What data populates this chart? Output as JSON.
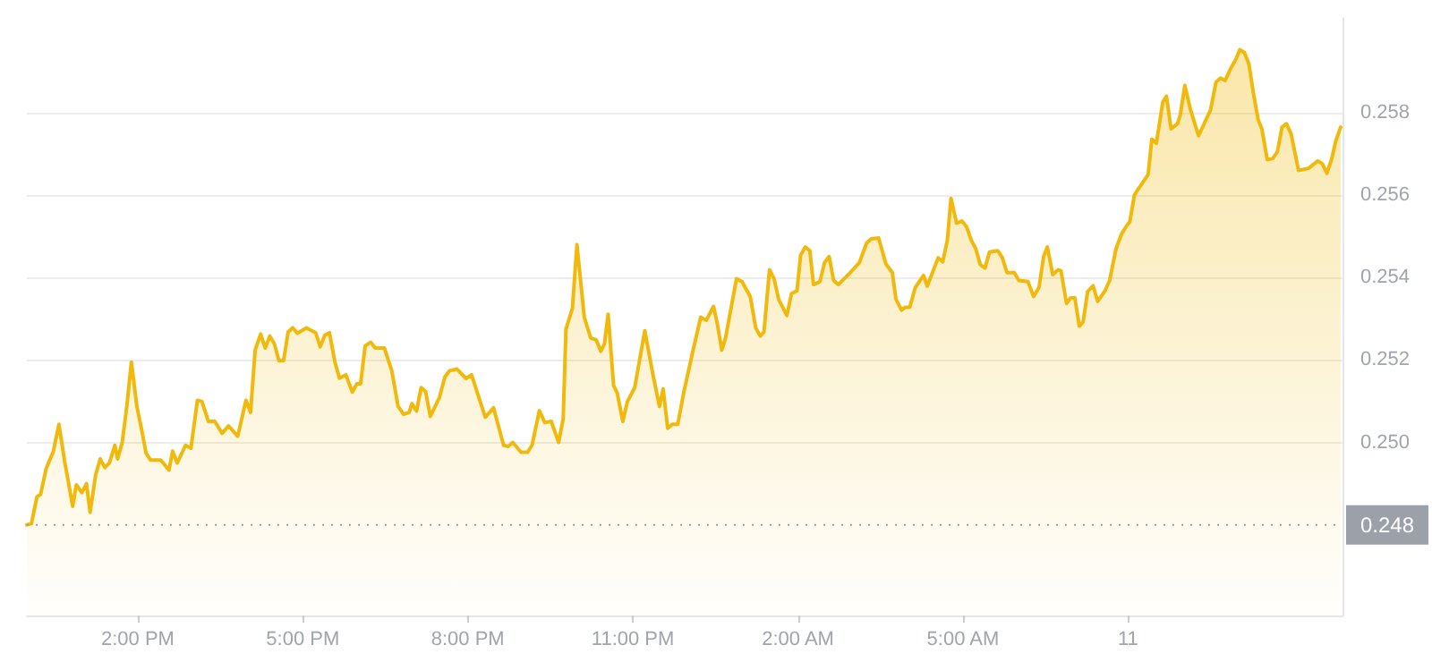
{
  "chart_data": {
    "type": "area",
    "color": "#f0b90b",
    "x": [
      "--01-10T11:59",
      "--01-10T12:04",
      "--01-10T12:10",
      "--01-10T12:14",
      "--01-10T12:20",
      "--01-10T12:28",
      "--01-10T12:34",
      "--01-10T12:40",
      "--01-10T12:49",
      "--01-10T12:53",
      "--01-10T12:59",
      "--01-10T13:04",
      "--01-10T13:08",
      "--01-10T13:14",
      "--01-10T13:19",
      "--01-10T13:24",
      "--01-10T13:29",
      "--01-10T13:35",
      "--01-10T13:38",
      "--01-10T13:43",
      "--01-10T13:48",
      "--01-10T13:53",
      "--01-10T13:59",
      "--01-10T14:05",
      "--01-10T14:09",
      "--01-10T14:14",
      "--01-10T14:25",
      "--01-10T14:34",
      "--01-10T14:38",
      "--01-10T14:43",
      "--01-10T14:52",
      "--01-10T14:58",
      "--01-10T15:05",
      "--01-10T15:10",
      "--01-10T15:17",
      "--01-10T15:24",
      "--01-10T15:32",
      "--01-10T15:39",
      "--01-10T15:49",
      "--01-10T15:58",
      "--01-10T16:03",
      "--01-10T16:08",
      "--01-10T16:14",
      "--01-10T16:19",
      "--01-10T16:24",
      "--01-10T16:29",
      "--01-10T16:34",
      "--01-10T16:39",
      "--01-10T16:44",
      "--01-10T16:49",
      "--01-10T16:54",
      "--01-10T17:04",
      "--01-10T17:14",
      "--01-10T17:19",
      "--01-10T17:24",
      "--01-10T17:29",
      "--01-10T17:35",
      "--01-10T17:40",
      "--01-10T17:47",
      "--01-10T17:54",
      "--01-10T17:59",
      "--01-10T18:03",
      "--01-10T18:08",
      "--01-10T18:14",
      "--01-10T18:19",
      "--01-10T18:29",
      "--01-10T18:37",
      "--01-10T18:44",
      "--01-10T18:50",
      "--01-10T18:56",
      "--01-10T18:59",
      "--01-10T19:04",
      "--01-10T19:09",
      "--01-10T19:14",
      "--01-10T19:19",
      "--01-10T19:29",
      "--01-10T19:35",
      "--01-10T19:40",
      "--01-10T19:48",
      "--01-10T19:58",
      "--01-10T20:04",
      "--01-10T20:11",
      "--01-10T20:19",
      "--01-10T20:28",
      "--01-10T20:39",
      "--01-10T20:44",
      "--01-10T20:49",
      "--01-10T20:58",
      "--01-10T21:05",
      "--01-10T21:10",
      "--01-10T21:18",
      "--01-10T21:24",
      "--01-10T21:31",
      "--01-10T21:39",
      "--01-10T21:44",
      "--01-10T21:47",
      "--01-10T21:54",
      "--01-10T21:59",
      "--01-10T22:07",
      "--01-10T22:14",
      "--01-10T22:20",
      "--01-10T22:25",
      "--01-10T22:29",
      "--01-10T22:33",
      "--01-10T22:39",
      "--01-10T22:43",
      "--01-10T22:49",
      "--01-10T22:54",
      "--01-10T23:02",
      "--01-10T23:13",
      "--01-10T23:22",
      "--01-10T23:29",
      "--01-10T23:33",
      "--01-10T23:38",
      "--01-10T23:43",
      "--01-10T23:49",
      "--01-10T23:55",
      "--01-11T00:05",
      "--01-11T00:14",
      "--01-11T00:20",
      "--01-11T00:28",
      "--01-11T00:32",
      "--01-11T00:37",
      "--01-11T00:41",
      "--01-11T00:53",
      "--01-11T00:59",
      "--01-11T01:08",
      "--01-11T01:14",
      "--01-11T01:19",
      "--01-11T01:23",
      "--01-11T01:29",
      "--01-11T01:34",
      "--01-11T01:39",
      "--01-11T01:48",
      "--01-11T01:53",
      "--01-11T01:59",
      "--01-11T02:03",
      "--01-11T02:08",
      "--01-11T02:13",
      "--01-11T02:17",
      "--01-11T02:24",
      "--01-11T02:29",
      "--01-11T02:34",
      "--01-11T02:39",
      "--01-11T02:44",
      "--01-11T02:55",
      "--01-11T03:07",
      "--01-11T03:15",
      "--01-11T03:20",
      "--01-11T03:28",
      "--01-11T03:36",
      "--01-11T03:43",
      "--01-11T03:47",
      "--01-11T03:53",
      "--01-11T03:57",
      "--01-11T04:02",
      "--01-11T04:08",
      "--01-11T04:17",
      "--01-11T04:21",
      "--01-11T04:33",
      "--01-11T04:38",
      "--01-11T04:43",
      "--01-11T04:47",
      "--01-11T04:53",
      "--01-11T04:59",
      "--01-11T05:04",
      "--01-11T05:09",
      "--01-11T05:14",
      "--01-11T05:19",
      "--01-11T05:24",
      "--01-11T05:29",
      "--01-11T05:38",
      "--01-11T05:43",
      "--01-11T05:48",
      "--01-11T05:56",
      "--01-11T06:01",
      "--01-11T06:11",
      "--01-11T06:17",
      "--01-11T06:23",
      "--01-11T06:28",
      "--01-11T06:32",
      "--01-11T06:38",
      "--01-11T06:44",
      "--01-11T06:47",
      "--01-11T06:53",
      "--01-11T06:57",
      "--01-11T07:02",
      "--01-11T07:07",
      "--01-11T07:11",
      "--01-11T07:16",
      "--01-11T07:22",
      "--01-11T07:27",
      "--01-11T07:35",
      "--01-11T07:40",
      "--01-11T07:47",
      "--01-11T07:53",
      "--01-11T07:59",
      "--01-11T08:02",
      "--01-11T08:07",
      "--01-11T08:11",
      "--01-11T08:22",
      "--01-11T08:26",
      "--01-11T08:31",
      "--01-11T08:38",
      "--01-11T08:42",
      "--01-11T08:47",
      "--01-11T08:54",
      "--01-11T08:57",
      "--01-11T09:02",
      "--01-11T09:08",
      "--01-11T09:17",
      "--01-11T09:23",
      "--01-11T09:30",
      "--01-11T09:36",
      "--01-11T09:41",
      "--01-11T09:46",
      "--01-11T09:52",
      "--01-11T09:58",
      "--01-11T10:02",
      "--01-11T10:07",
      "--01-11T10:12",
      "--01-11T10:17",
      "--01-11T10:22",
      "--01-11T10:26",
      "--01-11T10:32",
      "--01-11T10:38",
      "--01-11T10:43",
      "--01-11T10:48",
      "--01-11T10:53",
      "--01-11T10:58",
      "--01-11T11:06",
      "--01-11T11:17",
      "--01-11T11:27",
      "--01-11T11:32",
      "--01-11T11:37",
      "--01-11T11:42",
      "--01-11T11:47",
      "--01-11T11:52"
    ],
    "values": [
      0.248,
      0.24803,
      0.24868,
      0.24874,
      0.24936,
      0.24979,
      0.25044,
      0.24957,
      0.24845,
      0.24897,
      0.24878,
      0.249,
      0.2483,
      0.24921,
      0.2496,
      0.24939,
      0.2495,
      0.24993,
      0.2496,
      0.25,
      0.25087,
      0.25195,
      0.25087,
      0.25022,
      0.24974,
      0.24957,
      0.24957,
      0.24933,
      0.24979,
      0.2495,
      0.24993,
      0.24986,
      0.25102,
      0.25099,
      0.25051,
      0.25051,
      0.25022,
      0.2504,
      0.25015,
      0.25102,
      0.25073,
      0.25224,
      0.25263,
      0.25229,
      0.25258,
      0.25239,
      0.25198,
      0.25198,
      0.25268,
      0.25278,
      0.25265,
      0.25278,
      0.25266,
      0.25232,
      0.2526,
      0.25266,
      0.25195,
      0.25156,
      0.25164,
      0.25122,
      0.25142,
      0.25142,
      0.25234,
      0.25243,
      0.25229,
      0.25229,
      0.25174,
      0.25087,
      0.25068,
      0.25073,
      0.25094,
      0.25076,
      0.25133,
      0.25123,
      0.25063,
      0.25109,
      0.25159,
      0.25174,
      0.25178,
      0.25155,
      0.25164,
      0.25116,
      0.25061,
      0.25084,
      0.24993,
      0.2499,
      0.25,
      0.24976,
      0.24976,
      0.24993,
      0.25077,
      0.25048,
      0.25051,
      0.25,
      0.25058,
      0.25275,
      0.25325,
      0.2548,
      0.25304,
      0.25253,
      0.25249,
      0.25221,
      0.25239,
      0.25311,
      0.25138,
      0.25119,
      0.25051,
      0.25099,
      0.25133,
      0.25271,
      0.25163,
      0.25087,
      0.2513,
      0.25034,
      0.25044,
      0.25044,
      0.25116,
      0.25217,
      0.25304,
      0.25296,
      0.2533,
      0.25289,
      0.25224,
      0.25253,
      0.25397,
      0.2539,
      0.25354,
      0.25278,
      0.25258,
      0.25268,
      0.25419,
      0.25397,
      0.25347,
      0.25308,
      0.25361,
      0.25368,
      0.25455,
      0.25474,
      0.25465,
      0.25383,
      0.2539,
      0.25436,
      0.25451,
      0.25393,
      0.25383,
      0.25407,
      0.25436,
      0.25484,
      0.25494,
      0.25496,
      0.25433,
      0.25412,
      0.25347,
      0.25321,
      0.25328,
      0.25328,
      0.25376,
      0.25405,
      0.25379,
      0.25448,
      0.25438,
      0.25491,
      0.25592,
      0.25532,
      0.25537,
      0.25523,
      0.25491,
      0.2547,
      0.25431,
      0.25423,
      0.25462,
      0.25465,
      0.25448,
      0.25412,
      0.25412,
      0.25393,
      0.2539,
      0.25354,
      0.25376,
      0.25451,
      0.25474,
      0.25407,
      0.25419,
      0.25416,
      0.25337,
      0.2535,
      0.25351,
      0.25282,
      0.25292,
      0.25366,
      0.2538,
      0.25342,
      0.25368,
      0.25393,
      0.2547,
      0.25506,
      0.25527,
      0.25535,
      0.256,
      0.25614,
      0.2565,
      0.25736,
      0.25726,
      0.25826,
      0.2584,
      0.25761,
      0.25773,
      0.25794,
      0.25866,
      0.25809,
      0.25744,
      0.25773,
      0.25806,
      0.25874,
      0.25884,
      0.25878,
      0.25907,
      0.25931,
      0.25953,
      0.25946,
      0.25917,
      0.25845,
      0.25783,
      0.25761,
      0.25686,
      0.25689,
      0.25705,
      0.25765,
      0.25773,
      0.25748,
      0.2566,
      0.25665,
      0.25683,
      0.25676,
      0.25653,
      0.25686,
      0.25734,
      0.25765
    ],
    "xlim": [
      "--01-10T11:59",
      "--01-11T11:54"
    ],
    "xticks": [
      {
        "value": "--01-10T14:00",
        "label": "2:00 PM"
      },
      {
        "value": "--01-10T17:00",
        "label": "5:00 PM"
      },
      {
        "value": "--01-10T20:00",
        "label": "8:00 PM"
      },
      {
        "value": "--01-10T23:00",
        "label": "11:00 PM"
      },
      {
        "value": "--01-11T02:00",
        "label": "2:00 AM"
      },
      {
        "value": "--01-11T05:00",
        "label": "5:00 AM"
      },
      {
        "value": "--01-11T08:00",
        "label": "11"
      }
    ],
    "ylim": [
      0.2458,
      0.2603
    ],
    "yticks": [
      {
        "value": 0.25,
        "label": "0.250"
      },
      0.252,
      0.254,
      0.256,
      0.258
    ],
    "grid": "y",
    "marker": "none",
    "line_style": "solid",
    "ref_lines": [
      {
        "axis": "y",
        "value": 0.248,
        "label": "0.248",
        "color": "#9ca0a8",
        "line_style": "dotted"
      }
    ]
  }
}
